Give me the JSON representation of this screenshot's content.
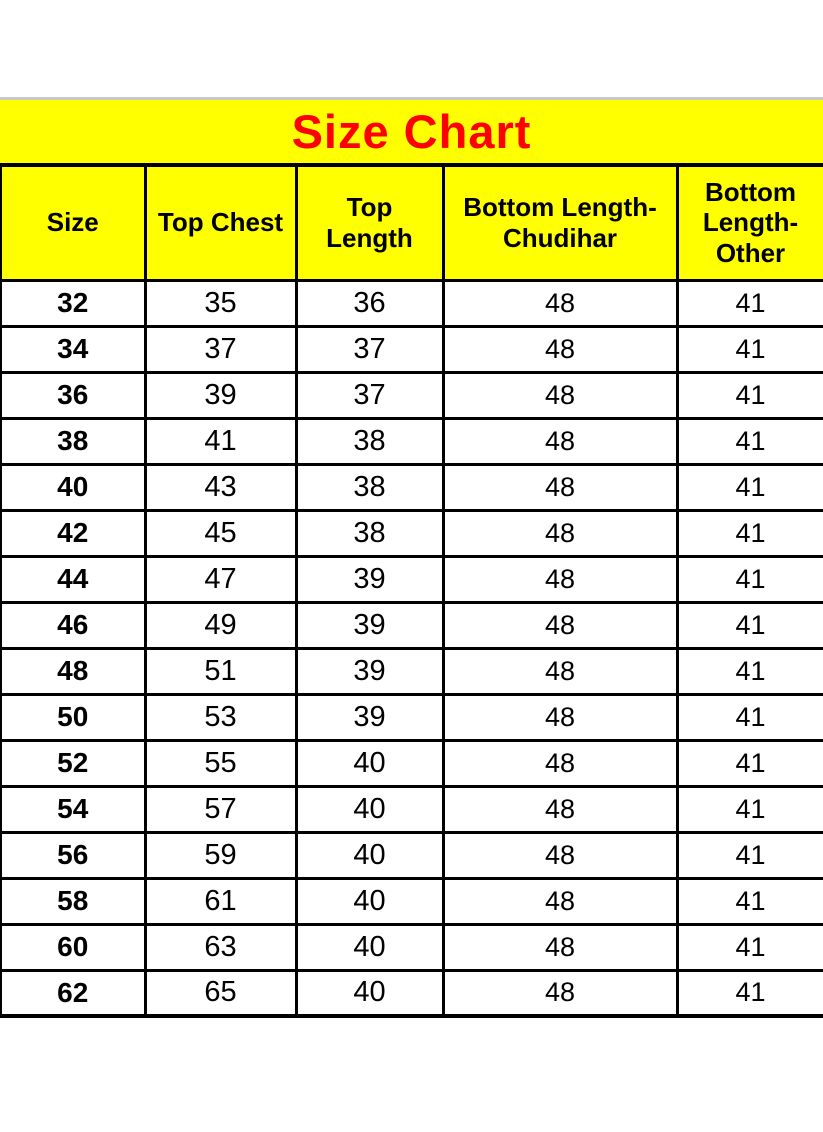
{
  "page_title": "Size Chart",
  "colors": {
    "header_bg": "#ffff00",
    "title_text": "#ff0000",
    "border": "#000000",
    "top_rule": "#c8c8c8",
    "page_bg": "#ffffff"
  },
  "chart_data": {
    "type": "table",
    "title": "Size Chart",
    "columns": [
      "Size",
      "Top Chest",
      "Top Length",
      "Bottom Length-Chudihar",
      "Bottom Length-Other"
    ],
    "rows": [
      [
        32,
        35,
        36,
        48,
        41
      ],
      [
        34,
        37,
        37,
        48,
        41
      ],
      [
        36,
        39,
        37,
        48,
        41
      ],
      [
        38,
        41,
        38,
        48,
        41
      ],
      [
        40,
        43,
        38,
        48,
        41
      ],
      [
        42,
        45,
        38,
        48,
        41
      ],
      [
        44,
        47,
        39,
        48,
        41
      ],
      [
        46,
        49,
        39,
        48,
        41
      ],
      [
        48,
        51,
        39,
        48,
        41
      ],
      [
        50,
        53,
        39,
        48,
        41
      ],
      [
        52,
        55,
        40,
        48,
        41
      ],
      [
        54,
        57,
        40,
        48,
        41
      ],
      [
        56,
        59,
        40,
        48,
        41
      ],
      [
        58,
        61,
        40,
        48,
        41
      ],
      [
        60,
        63,
        40,
        48,
        41
      ],
      [
        62,
        65,
        40,
        48,
        41
      ]
    ]
  }
}
